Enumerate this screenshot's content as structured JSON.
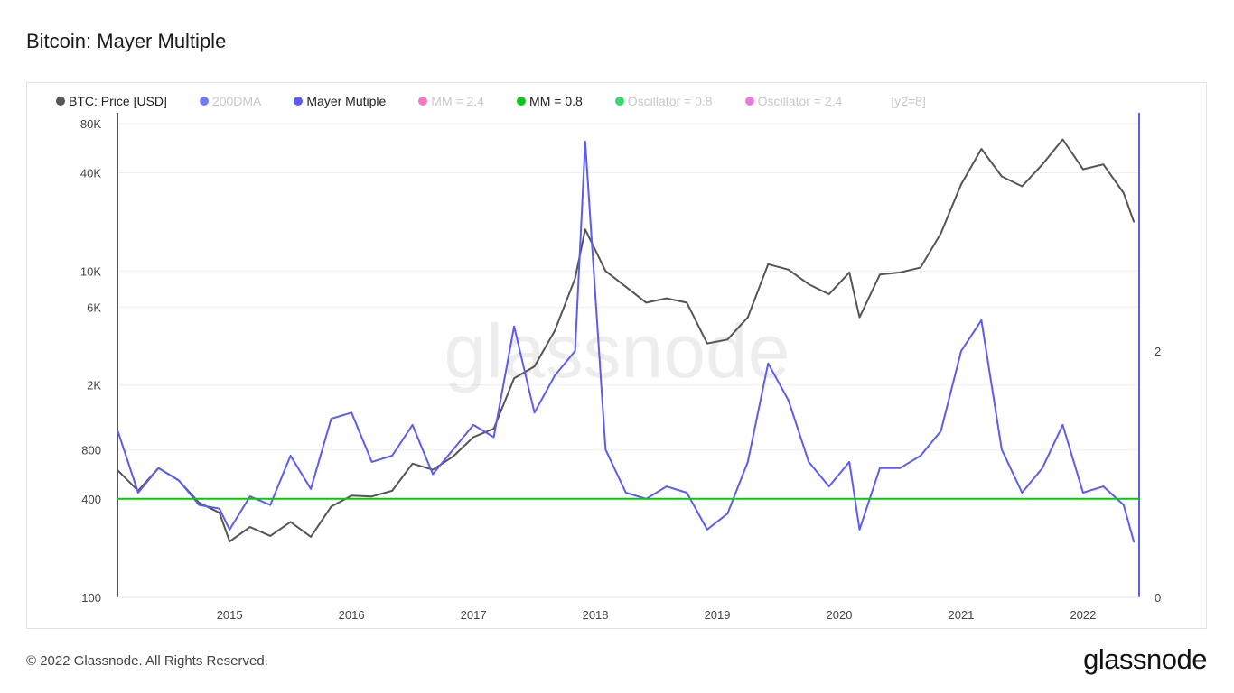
{
  "title": "Bitcoin: Mayer Multiple",
  "footer": "© 2022 Glassnode. All Rights Reserved.",
  "brand": "glassnode",
  "watermark": "glassnode",
  "legend": [
    {
      "label": "BTC: Price [USD]",
      "color": "#555555",
      "muted": false
    },
    {
      "label": "200DMA",
      "color": "#6f7cf5",
      "muted": true
    },
    {
      "label": "Mayer Mutiple",
      "color": "#5a5af0",
      "muted": false
    },
    {
      "label": "MM = 2.4",
      "color": "#f07cc0",
      "muted": true
    },
    {
      "label": "MM = 0.8",
      "color": "#11c21a",
      "muted": false
    },
    {
      "label": "Oscillator = 0.8",
      "color": "#3ad670",
      "muted": true
    },
    {
      "label": "Oscillator = 2.4",
      "color": "#e87ad8",
      "muted": true
    }
  ],
  "legend_extra": "[y2=8]",
  "chart_data": {
    "type": "line",
    "x_ticks": [
      "2015",
      "2016",
      "2017",
      "2018",
      "2019",
      "2020",
      "2021",
      "2022"
    ],
    "y_left": {
      "scale": "log",
      "ticks": [
        "100",
        "400",
        "800",
        "2K",
        "6K",
        "10K",
        "40K",
        "80K"
      ],
      "tick_values": [
        100,
        400,
        800,
        2000,
        6000,
        10000,
        40000,
        80000
      ],
      "range": [
        100,
        80000
      ]
    },
    "y_right": {
      "scale": "linear",
      "ticks": [
        "0",
        "2"
      ],
      "tick_values": [
        0,
        2
      ],
      "range": [
        0,
        4
      ]
    },
    "colors": {
      "price": "#555555",
      "mayer": "#5b5cf0",
      "mm08": "#11c21a"
    },
    "series": [
      {
        "name": "BTC: Price [USD]",
        "axis": "left",
        "color": "#555555",
        "points": [
          [
            "2014-02",
            600
          ],
          [
            "2014-04",
            450
          ],
          [
            "2014-06",
            620
          ],
          [
            "2014-08",
            520
          ],
          [
            "2014-10",
            380
          ],
          [
            "2014-12",
            330
          ],
          [
            "2015-01",
            220
          ],
          [
            "2015-03",
            270
          ],
          [
            "2015-05",
            238
          ],
          [
            "2015-07",
            290
          ],
          [
            "2015-09",
            235
          ],
          [
            "2015-11",
            360
          ],
          [
            "2016-01",
            420
          ],
          [
            "2016-03",
            415
          ],
          [
            "2016-05",
            450
          ],
          [
            "2016-07",
            660
          ],
          [
            "2016-09",
            605
          ],
          [
            "2016-11",
            730
          ],
          [
            "2017-01",
            960
          ],
          [
            "2017-03",
            1080
          ],
          [
            "2017-05",
            2200
          ],
          [
            "2017-07",
            2600
          ],
          [
            "2017-09",
            4300
          ],
          [
            "2017-11",
            9000
          ],
          [
            "2017-12",
            18000
          ],
          [
            "2018-02",
            10000
          ],
          [
            "2018-04",
            8000
          ],
          [
            "2018-06",
            6400
          ],
          [
            "2018-08",
            6800
          ],
          [
            "2018-10",
            6400
          ],
          [
            "2018-12",
            3600
          ],
          [
            "2019-02",
            3800
          ],
          [
            "2019-04",
            5200
          ],
          [
            "2019-06",
            11000
          ],
          [
            "2019-08",
            10200
          ],
          [
            "2019-10",
            8300
          ],
          [
            "2019-12",
            7200
          ],
          [
            "2020-02",
            9800
          ],
          [
            "2020-03",
            5200
          ],
          [
            "2020-05",
            9500
          ],
          [
            "2020-07",
            9800
          ],
          [
            "2020-09",
            10500
          ],
          [
            "2020-11",
            17000
          ],
          [
            "2021-01",
            34000
          ],
          [
            "2021-03",
            56000
          ],
          [
            "2021-05",
            38000
          ],
          [
            "2021-07",
            33000
          ],
          [
            "2021-09",
            45000
          ],
          [
            "2021-11",
            64000
          ],
          [
            "2022-01",
            42000
          ],
          [
            "2022-03",
            45000
          ],
          [
            "2022-05",
            30000
          ],
          [
            "2022-06",
            20000
          ]
        ]
      },
      {
        "name": "Mayer Mutiple",
        "axis": "right",
        "color": "#5b5cf0",
        "points": [
          [
            "2014-02",
            1.35
          ],
          [
            "2014-04",
            0.85
          ],
          [
            "2014-06",
            1.05
          ],
          [
            "2014-08",
            0.95
          ],
          [
            "2014-10",
            0.75
          ],
          [
            "2014-12",
            0.72
          ],
          [
            "2015-01",
            0.55
          ],
          [
            "2015-03",
            0.82
          ],
          [
            "2015-05",
            0.75
          ],
          [
            "2015-07",
            1.15
          ],
          [
            "2015-09",
            0.88
          ],
          [
            "2015-11",
            1.45
          ],
          [
            "2016-01",
            1.5
          ],
          [
            "2016-03",
            1.1
          ],
          [
            "2016-05",
            1.15
          ],
          [
            "2016-07",
            1.4
          ],
          [
            "2016-09",
            1.0
          ],
          [
            "2016-11",
            1.2
          ],
          [
            "2017-01",
            1.4
          ],
          [
            "2017-03",
            1.3
          ],
          [
            "2017-05",
            2.2
          ],
          [
            "2017-07",
            1.5
          ],
          [
            "2017-09",
            1.8
          ],
          [
            "2017-11",
            2.0
          ],
          [
            "2017-12",
            3.7
          ],
          [
            "2018-02",
            1.2
          ],
          [
            "2018-04",
            0.85
          ],
          [
            "2018-06",
            0.8
          ],
          [
            "2018-08",
            0.9
          ],
          [
            "2018-10",
            0.85
          ],
          [
            "2018-12",
            0.55
          ],
          [
            "2019-02",
            0.68
          ],
          [
            "2019-04",
            1.1
          ],
          [
            "2019-06",
            1.9
          ],
          [
            "2019-08",
            1.6
          ],
          [
            "2019-10",
            1.1
          ],
          [
            "2019-12",
            0.9
          ],
          [
            "2020-02",
            1.1
          ],
          [
            "2020-03",
            0.55
          ],
          [
            "2020-05",
            1.05
          ],
          [
            "2020-07",
            1.05
          ],
          [
            "2020-09",
            1.15
          ],
          [
            "2020-11",
            1.35
          ],
          [
            "2021-01",
            2.0
          ],
          [
            "2021-03",
            2.25
          ],
          [
            "2021-05",
            1.2
          ],
          [
            "2021-07",
            0.85
          ],
          [
            "2021-09",
            1.05
          ],
          [
            "2021-11",
            1.4
          ],
          [
            "2022-01",
            0.85
          ],
          [
            "2022-03",
            0.9
          ],
          [
            "2022-05",
            0.75
          ],
          [
            "2022-06",
            0.45
          ]
        ]
      },
      {
        "name": "MM = 0.8",
        "axis": "right",
        "color": "#11c21a",
        "constant": 0.8
      }
    ]
  }
}
